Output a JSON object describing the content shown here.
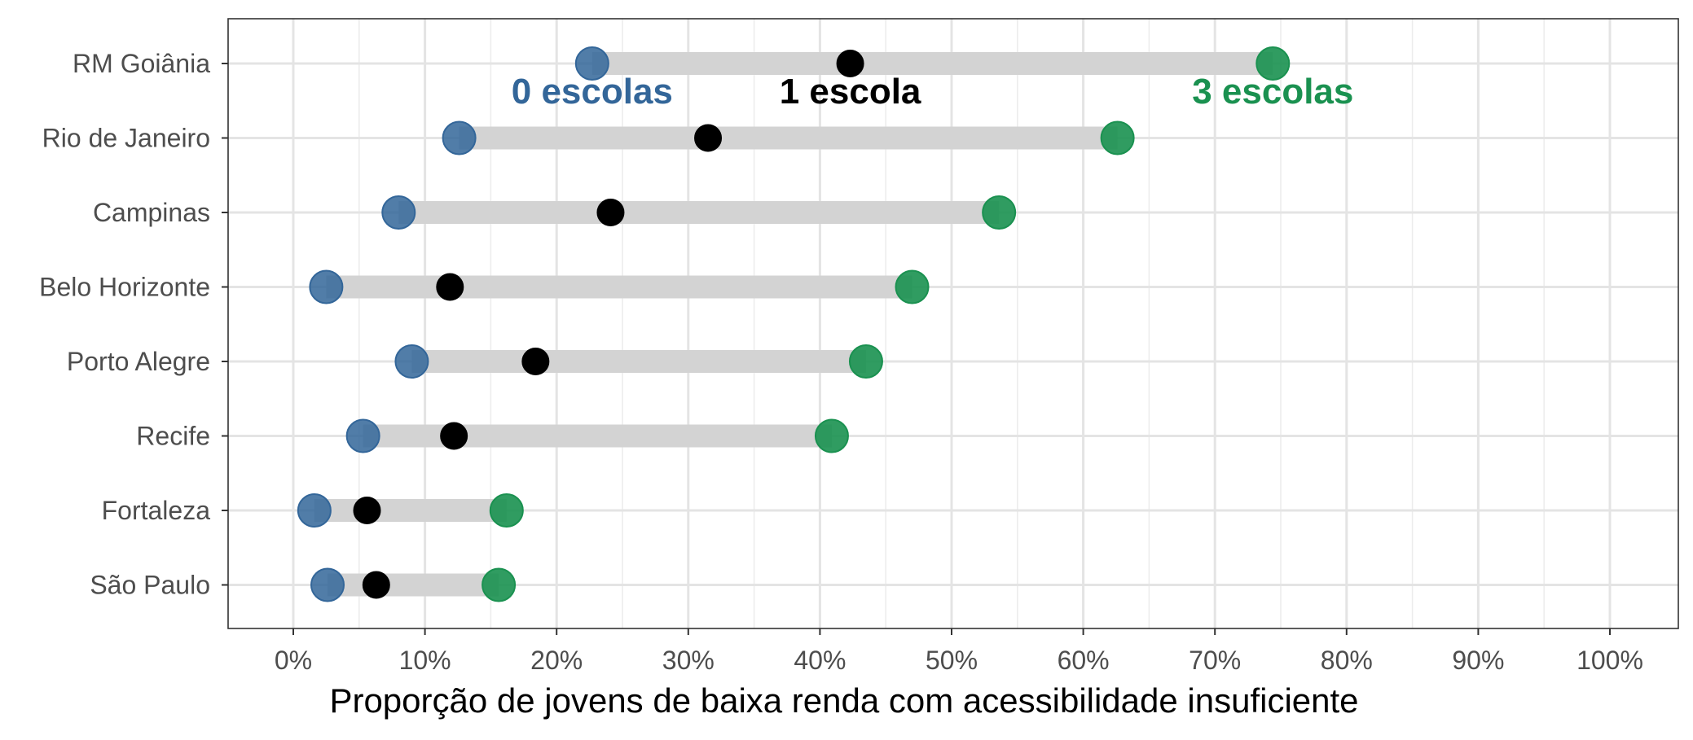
{
  "chart_data": {
    "type": "dumbbell",
    "xlabel": "Proporção de jovens de baixa renda com acessibilidade insuficiente",
    "ylabel": "",
    "xlim": [
      -5,
      105
    ],
    "xticks": [
      0,
      10,
      20,
      30,
      40,
      50,
      60,
      70,
      80,
      90,
      100
    ],
    "xtick_labels": [
      "0%",
      "10%",
      "20%",
      "30%",
      "40%",
      "50%",
      "60%",
      "70%",
      "80%",
      "90%",
      "100%"
    ],
    "grid": true,
    "categories": [
      "RM Goiânia",
      "Rio de Janeiro",
      "Campinas",
      "Belo Horizonte",
      "Porto Alegre",
      "Recife",
      "Fortaleza",
      "São Paulo"
    ],
    "series": [
      {
        "name": "0 escolas",
        "color": "#336699",
        "values": [
          22.7,
          12.6,
          8.0,
          2.5,
          9.0,
          5.3,
          1.6,
          2.6
        ]
      },
      {
        "name": "1 escola",
        "color": "#000000",
        "values": [
          42.3,
          31.5,
          24.1,
          11.9,
          18.4,
          12.2,
          5.6,
          6.3
        ]
      },
      {
        "name": "3 escolas",
        "color": "#1a9150",
        "values": [
          74.4,
          62.6,
          53.6,
          47.0,
          43.5,
          40.9,
          16.2,
          15.6
        ]
      }
    ],
    "annotations": [
      {
        "text": "0 escolas",
        "x": 22.7,
        "color": "#336699"
      },
      {
        "text": "1 escola",
        "x": 42.3,
        "color": "#000000"
      },
      {
        "text": "3 escolas",
        "x": 74.4,
        "color": "#1a9150"
      }
    ]
  }
}
